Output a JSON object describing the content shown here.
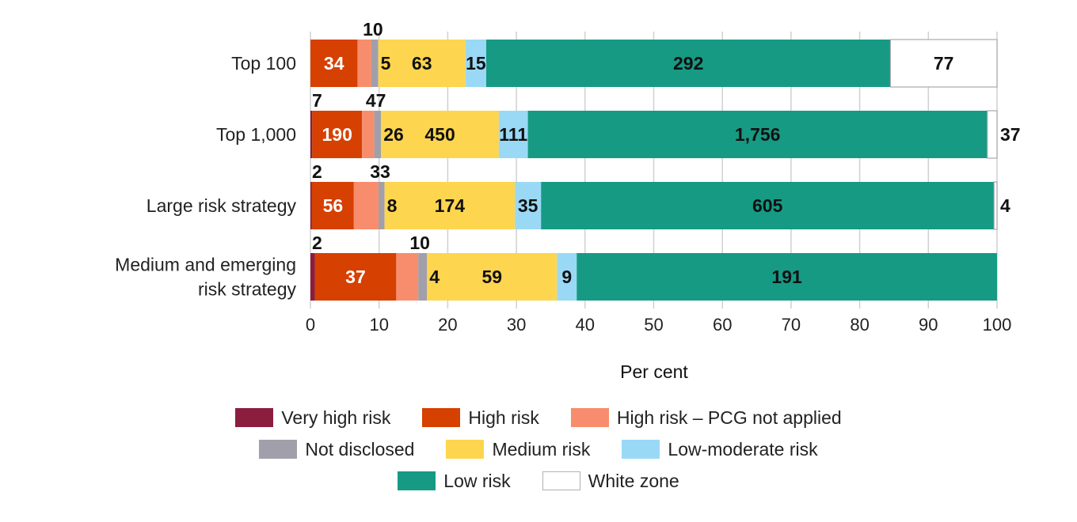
{
  "chart_data": {
    "type": "bar",
    "orientation": "horizontal",
    "stacked": "percent",
    "title": "",
    "xlabel": "Per cent",
    "ylabel": "",
    "xlim": [
      0,
      100
    ],
    "x_ticks": [
      "0",
      "10",
      "20",
      "30",
      "40",
      "50",
      "60",
      "70",
      "80",
      "90",
      "100"
    ],
    "grid": true,
    "legend_position": "bottom",
    "categories": [
      "Top 100",
      "Top 1,000",
      "Large risk strategy",
      "Medium and emerging risk strategy"
    ],
    "category_lines": [
      [
        "Top 100"
      ],
      [
        "Top 1,000"
      ],
      [
        "Large risk strategy"
      ],
      [
        "Medium and emerging",
        "risk strategy"
      ]
    ],
    "series": [
      {
        "name": "Very high risk",
        "color": "#8b1e3f",
        "values": [
          0,
          7,
          2,
          2
        ],
        "labels": [
          "",
          "7",
          "2",
          "2"
        ],
        "label_pos": "above"
      },
      {
        "name": "High risk",
        "color": "#d64000",
        "values": [
          34,
          190,
          56,
          37
        ],
        "labels": [
          "34",
          "190",
          "56",
          "37"
        ],
        "label_pos": "inside-white"
      },
      {
        "name": "High risk – PCG not applied",
        "color": "#f78d6d",
        "values": [
          10,
          47,
          33,
          10
        ],
        "labels": [
          "10",
          "47",
          "33",
          "10"
        ],
        "label_pos": "above"
      },
      {
        "name": "Not disclosed",
        "color": "#a19fa9",
        "values": [
          5,
          26,
          8,
          4
        ],
        "labels": [
          "5",
          "26",
          "8",
          "4"
        ],
        "label_pos": "inside-right"
      },
      {
        "name": "Medium risk",
        "color": "#fed54f",
        "values": [
          63,
          450,
          174,
          59
        ],
        "labels": [
          "63",
          "450",
          "174",
          "59"
        ],
        "label_pos": "inside"
      },
      {
        "name": "Low-moderate risk",
        "color": "#9ad9f5",
        "values": [
          15,
          111,
          35,
          9
        ],
        "labels": [
          "15",
          "111",
          "35",
          "9"
        ],
        "label_pos": "inside"
      },
      {
        "name": "Low risk",
        "color": "#169a84",
        "values": [
          292,
          1756,
          605,
          191
        ],
        "labels": [
          "292",
          "1,756",
          "605",
          "191"
        ],
        "label_pos": "inside"
      },
      {
        "name": "White zone",
        "color": "#ffffff",
        "values": [
          77,
          37,
          4,
          0
        ],
        "labels": [
          "77",
          "37",
          "4",
          ""
        ],
        "label_pos": "inside-or-right"
      }
    ]
  },
  "legend": {
    "rows": [
      [
        0,
        1,
        2
      ],
      [
        3,
        4,
        5
      ],
      [
        6,
        7
      ]
    ]
  }
}
